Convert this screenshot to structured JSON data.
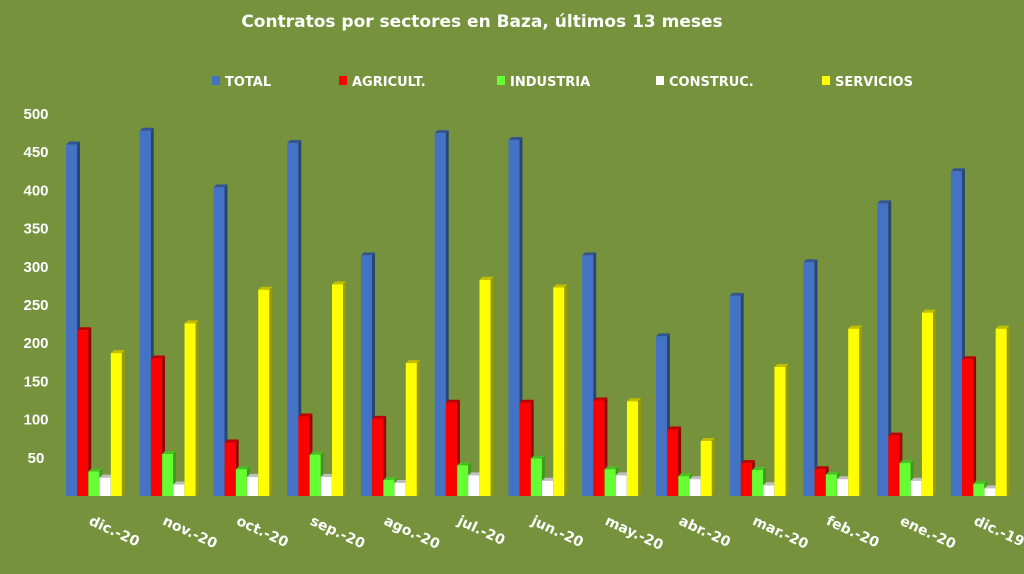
{
  "chart_data": {
    "type": "bar",
    "title": "Contratos por sectores en Baza, últimos 13 meses",
    "categories": [
      "dic.-20",
      "nov.-20",
      "oct.-20",
      "sep.-20",
      "ago.-20",
      "jul.-20",
      "jun.-20",
      "may.-20",
      "abr.-20",
      "mar.-20",
      "feb.-20",
      "ene.-20",
      "dic.-19"
    ],
    "series": [
      {
        "name": "TOTAL",
        "color": "#4472c4",
        "values": [
          460,
          478,
          404,
          462,
          315,
          475,
          466,
          315,
          209,
          262,
          306,
          383,
          425
        ]
      },
      {
        "name": "AGRICULT.",
        "color": "#ff0000",
        "values": [
          217,
          180,
          70,
          104,
          101,
          122,
          122,
          125,
          87,
          43,
          35,
          79,
          179
        ]
      },
      {
        "name": "INDUSTRIA",
        "color": "#66ff33",
        "values": [
          32,
          55,
          35,
          54,
          21,
          40,
          49,
          35,
          26,
          34,
          28,
          43,
          16
        ]
      },
      {
        "name": "CONSTRUC.",
        "color": "#ffffff",
        "values": [
          24,
          15,
          25,
          25,
          17,
          27,
          20,
          27,
          22,
          14,
          22,
          20,
          10
        ]
      },
      {
        "name": "SERVICIOS",
        "color": "#ffff00",
        "values": [
          187,
          226,
          270,
          277,
          174,
          283,
          273,
          124,
          72,
          169,
          219,
          240,
          219
        ]
      }
    ],
    "ylim": [
      0,
      500
    ],
    "yticks": [
      50,
      100,
      150,
      200,
      250,
      300,
      350,
      400,
      450,
      500
    ],
    "legend_position": "top",
    "grid": false,
    "xlabel": "",
    "ylabel": ""
  }
}
